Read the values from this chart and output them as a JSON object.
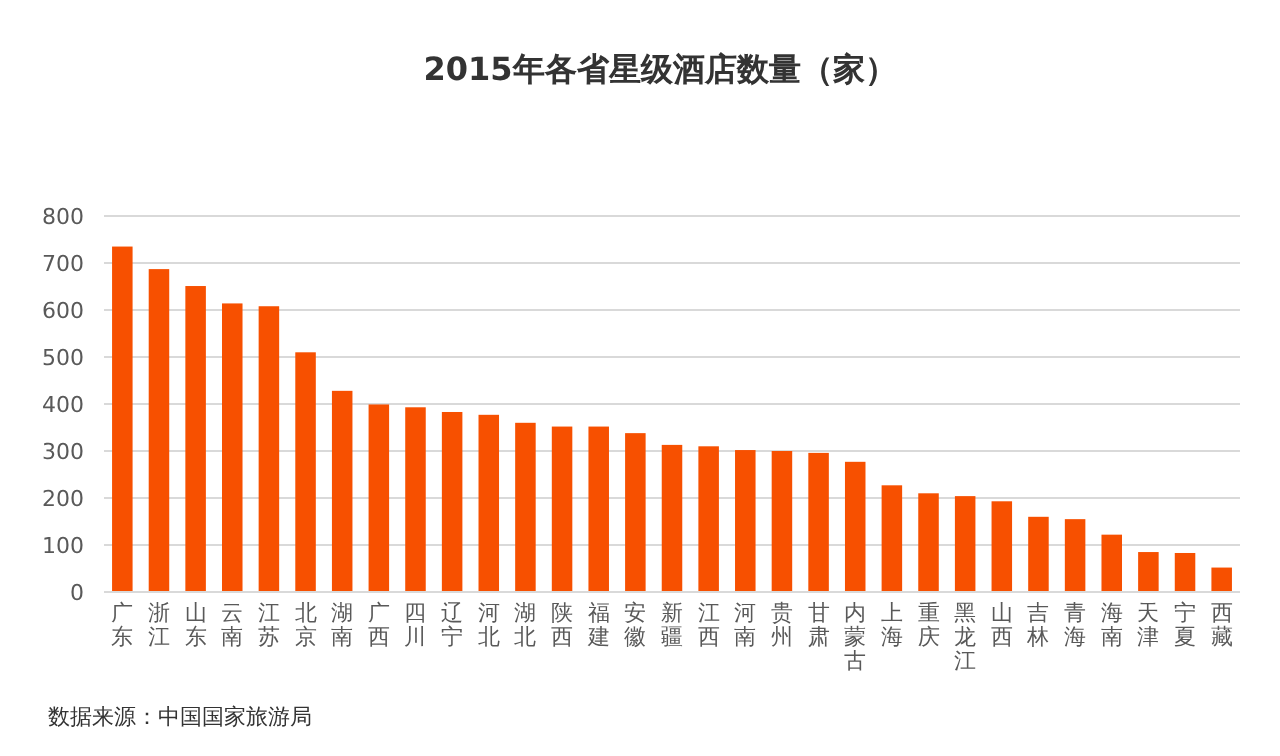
{
  "chart_data": {
    "type": "bar",
    "title": "2015年各省星级酒店数量（家）",
    "categories": [
      "广东",
      "浙江",
      "山东",
      "云南",
      "江苏",
      "北京",
      "湖南",
      "广西",
      "四川",
      "辽宁",
      "河北",
      "湖北",
      "陕西",
      "福建",
      "安徽",
      "新疆",
      "江西",
      "河南",
      "贵州",
      "甘肃",
      "内蒙古",
      "上海",
      "重庆",
      "黑龙江",
      "山西",
      "吉林",
      "青海",
      "海南",
      "天津",
      "宁夏",
      "西藏"
    ],
    "values": [
      735,
      687,
      651,
      614,
      608,
      510,
      428,
      399,
      393,
      383,
      377,
      360,
      352,
      352,
      338,
      313,
      310,
      302,
      300,
      296,
      277,
      227,
      210,
      204,
      193,
      160,
      155,
      122,
      85,
      83,
      52
    ],
    "color": "#f75000",
    "ylim": [
      0,
      800
    ],
    "yticks": [
      0,
      100,
      200,
      300,
      400,
      500,
      600,
      700,
      800
    ],
    "grid": "y",
    "annotations": [
      "数据来源：中国国家旅游局"
    ]
  }
}
